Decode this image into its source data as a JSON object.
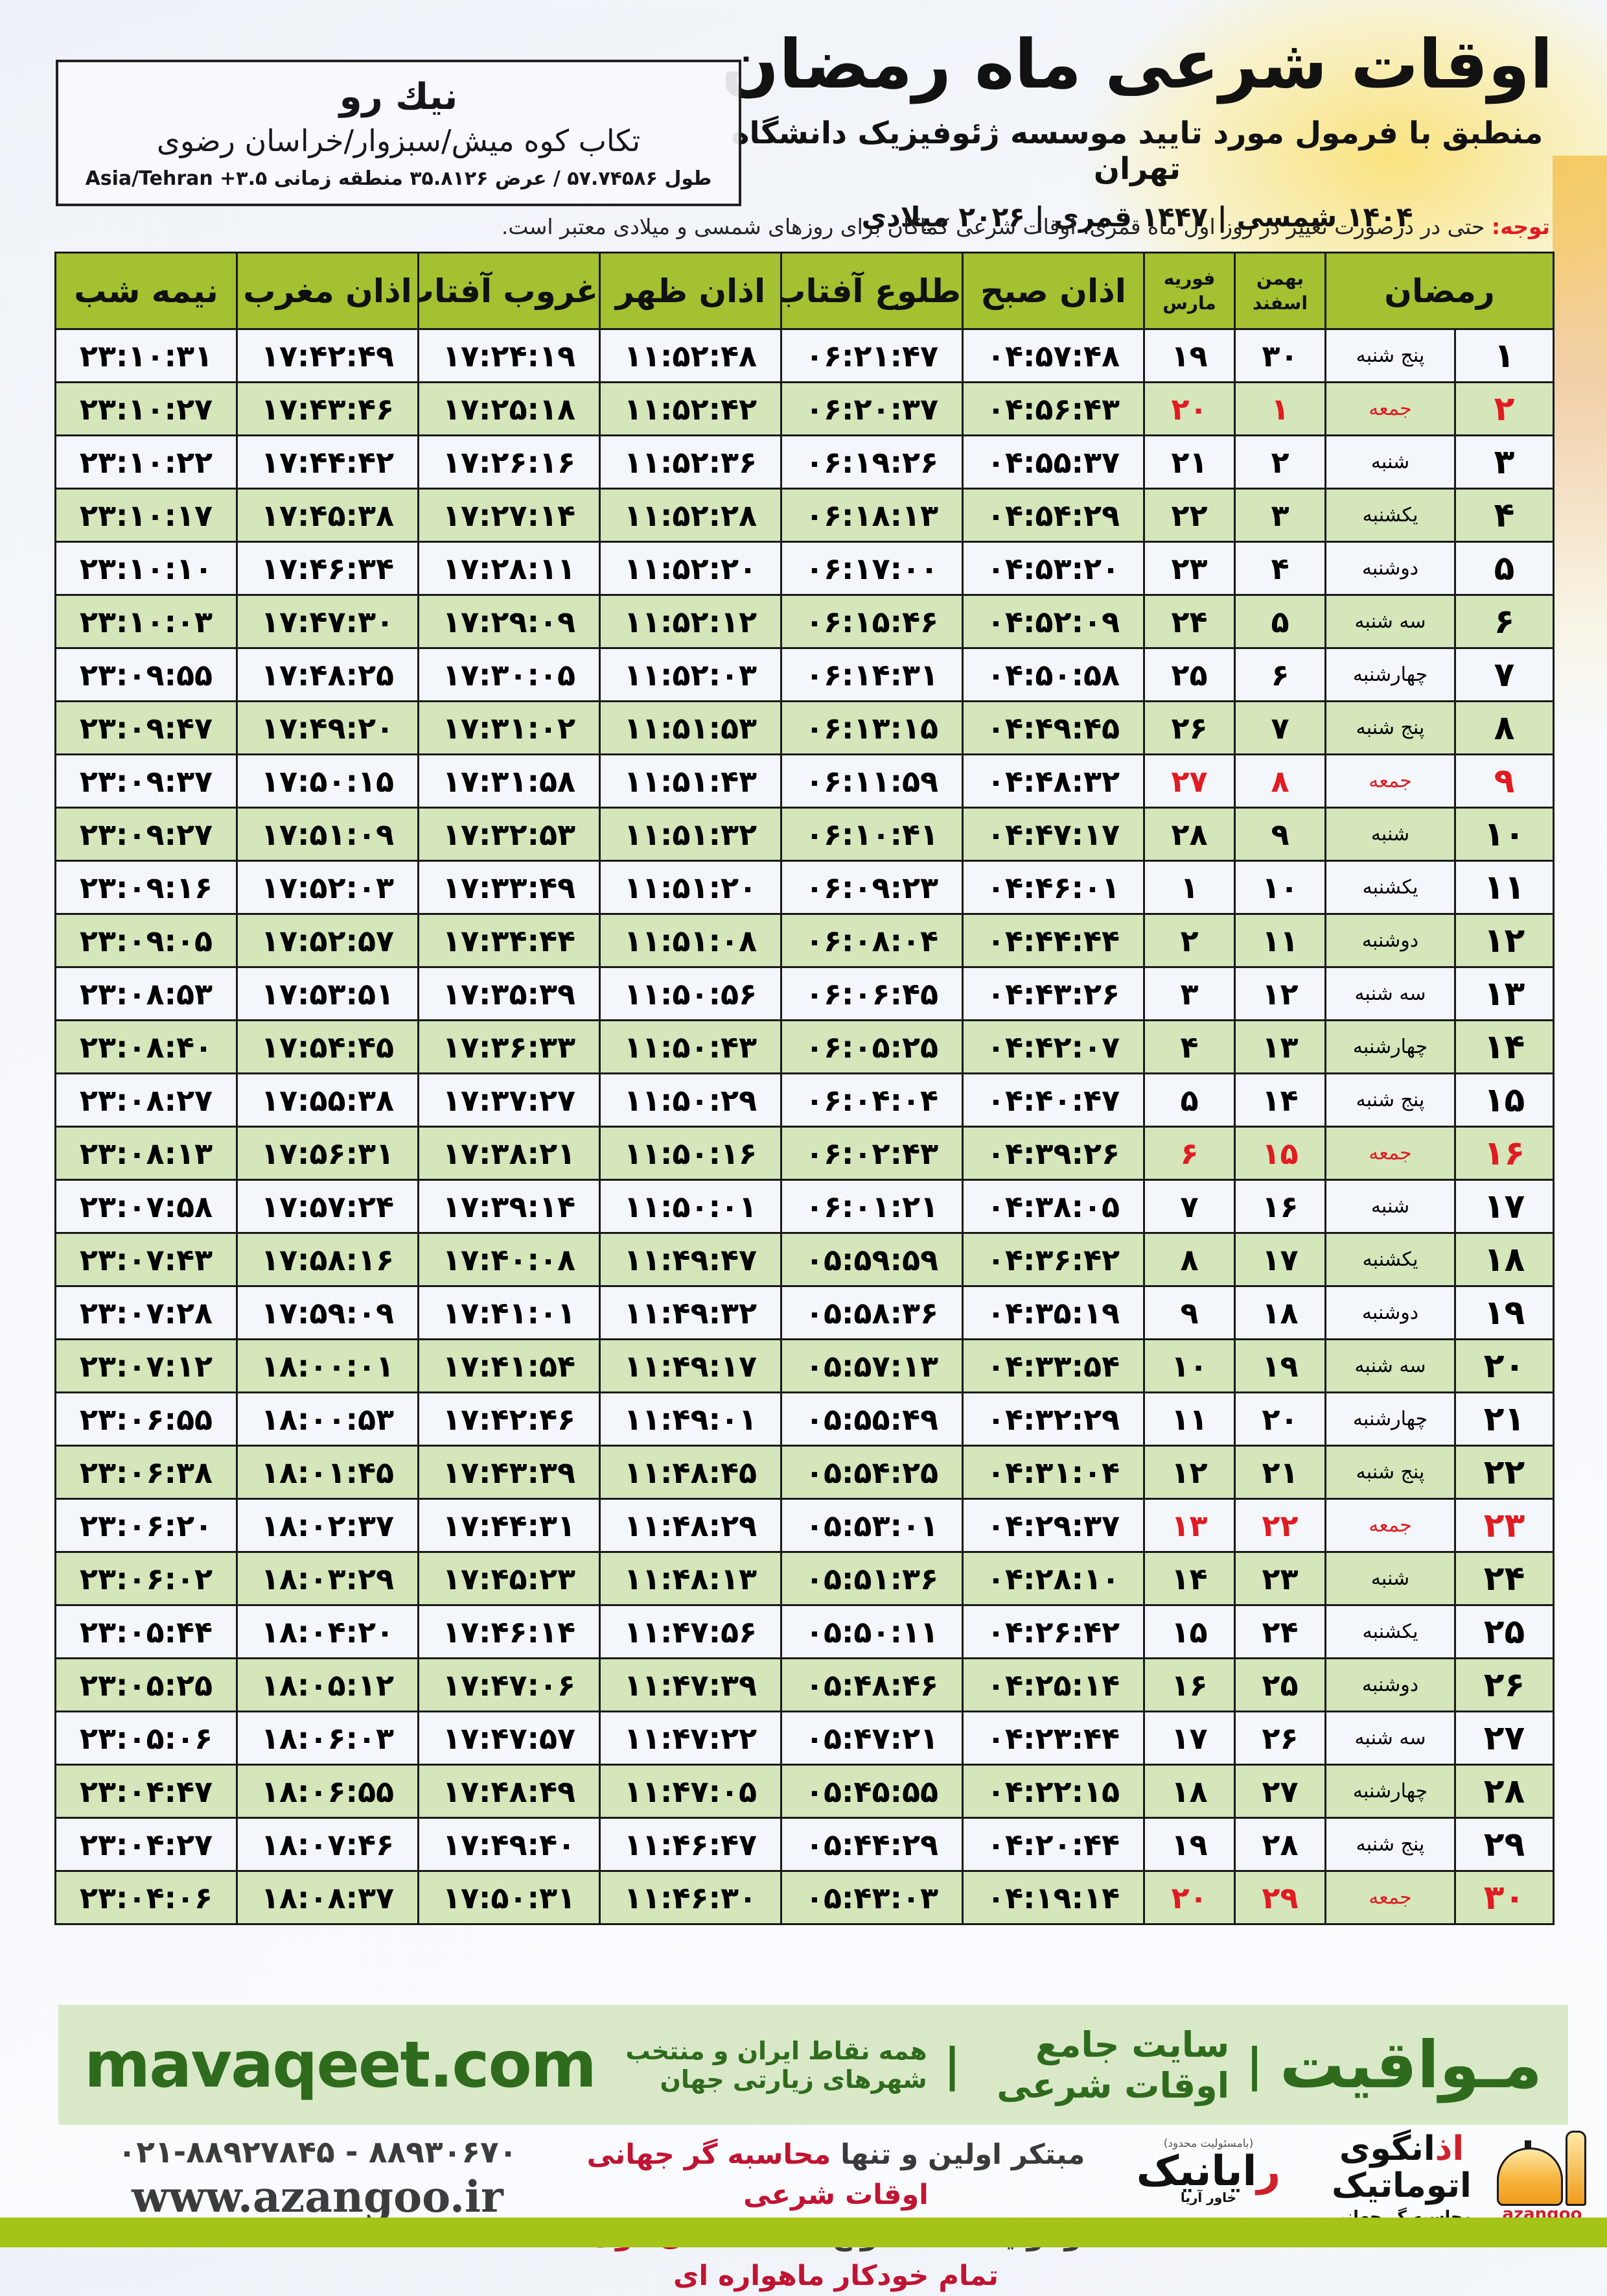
{
  "colors": {
    "header_green": "#a3c130",
    "row_green": "#d4e6ba",
    "row_white": "#f3f6fb",
    "holiday_red": "#e11b22",
    "bar_bg": "#d9e9c8",
    "dark_green": "#2f6b1d",
    "bottom_strip": "#a4c417",
    "footer_red": "#c01432"
  },
  "header": {
    "title": "اوقات شرعی ماه رمضان",
    "subtitle": "منطبق با فرمول مورد تایید موسسه ژئوفیزیک دانشگاه تهران",
    "years": "۱۴۰۴ شمسی | ۱۴۴۷ قمری | ۲۰۲۶ میلادی"
  },
  "location": {
    "name": "نیك رو",
    "region": "تکاب کوه میش/سبزوار/خراسان رضوی",
    "coords": "طول ۵۷.۷۴۵۸۶ / عرض ۳۵.۸۱۲۶ منطقه زمانی Asia/Tehran +۳.۵"
  },
  "notice": {
    "label": "توجه:",
    "text": " حتی در درصورت تغییر در روز اول ماه قمری، اوقات شرعی کماکان برای روزهای شمسی و میلادی معتبر است."
  },
  "table": {
    "headers": {
      "ramadan": "رمضان",
      "solar_months": [
        "بهمن",
        "اسفند"
      ],
      "greg_months": [
        "فوریه",
        "مارس"
      ],
      "fajr": "اذان صبح",
      "sunrise": "طلوع آفتاب",
      "dhuhr": "اذان ظهر",
      "sunset": "غروب آفتاب",
      "maghrib": "اذان مغرب",
      "midnight": "نیمه شب"
    },
    "rows": [
      {
        "d": "1",
        "w": "پنج شنبه",
        "s": "30",
        "g": "19",
        "t": [
          "04:57:48",
          "06:21:47",
          "11:52:48",
          "17:24:19",
          "17:42:49",
          "23:10:31"
        ],
        "f": false
      },
      {
        "d": "2",
        "w": "جمعه",
        "s": "1",
        "g": "20",
        "t": [
          "04:56:43",
          "06:20:37",
          "11:52:42",
          "17:25:18",
          "17:43:46",
          "23:10:27"
        ],
        "f": true
      },
      {
        "d": "3",
        "w": "شنبه",
        "s": "2",
        "g": "21",
        "t": [
          "04:55:37",
          "06:19:26",
          "11:52:36",
          "17:26:16",
          "17:44:42",
          "23:10:22"
        ],
        "f": false
      },
      {
        "d": "4",
        "w": "یکشنبه",
        "s": "3",
        "g": "22",
        "t": [
          "04:54:29",
          "06:18:13",
          "11:52:28",
          "17:27:14",
          "17:45:38",
          "23:10:17"
        ],
        "f": false
      },
      {
        "d": "5",
        "w": "دوشنبه",
        "s": "4",
        "g": "23",
        "t": [
          "04:53:20",
          "06:17:00",
          "11:52:20",
          "17:28:11",
          "17:46:34",
          "23:10:10"
        ],
        "f": false
      },
      {
        "d": "6",
        "w": "سه شنبه",
        "s": "5",
        "g": "24",
        "t": [
          "04:52:09",
          "06:15:46",
          "11:52:12",
          "17:29:09",
          "17:47:30",
          "23:10:03"
        ],
        "f": false
      },
      {
        "d": "7",
        "w": "چهارشنبه",
        "s": "6",
        "g": "25",
        "t": [
          "04:50:58",
          "06:14:31",
          "11:52:03",
          "17:30:05",
          "17:48:25",
          "23:09:55"
        ],
        "f": false
      },
      {
        "d": "8",
        "w": "پنج شنبه",
        "s": "7",
        "g": "26",
        "t": [
          "04:49:45",
          "06:13:15",
          "11:51:53",
          "17:31:02",
          "17:49:20",
          "23:09:47"
        ],
        "f": false
      },
      {
        "d": "9",
        "w": "جمعه",
        "s": "8",
        "g": "27",
        "t": [
          "04:48:32",
          "06:11:59",
          "11:51:43",
          "17:31:58",
          "17:50:15",
          "23:09:37"
        ],
        "f": true
      },
      {
        "d": "10",
        "w": "شنبه",
        "s": "9",
        "g": "28",
        "t": [
          "04:47:17",
          "06:10:41",
          "11:51:32",
          "17:32:53",
          "17:51:09",
          "23:09:27"
        ],
        "f": false
      },
      {
        "d": "11",
        "w": "یکشنبه",
        "s": "10",
        "g": "1",
        "t": [
          "04:46:01",
          "06:09:23",
          "11:51:20",
          "17:33:49",
          "17:52:03",
          "23:09:16"
        ],
        "f": false
      },
      {
        "d": "12",
        "w": "دوشنبه",
        "s": "11",
        "g": "2",
        "t": [
          "04:44:44",
          "06:08:04",
          "11:51:08",
          "17:34:44",
          "17:52:57",
          "23:09:05"
        ],
        "f": false
      },
      {
        "d": "13",
        "w": "سه شنبه",
        "s": "12",
        "g": "3",
        "t": [
          "04:43:26",
          "06:06:45",
          "11:50:56",
          "17:35:39",
          "17:53:51",
          "23:08:53"
        ],
        "f": false
      },
      {
        "d": "14",
        "w": "چهارشنبه",
        "s": "13",
        "g": "4",
        "t": [
          "04:42:07",
          "06:05:25",
          "11:50:43",
          "17:36:33",
          "17:54:45",
          "23:08:40"
        ],
        "f": false
      },
      {
        "d": "15",
        "w": "پنج شنبه",
        "s": "14",
        "g": "5",
        "t": [
          "04:40:47",
          "06:04:04",
          "11:50:29",
          "17:37:27",
          "17:55:38",
          "23:08:27"
        ],
        "f": false
      },
      {
        "d": "16",
        "w": "جمعه",
        "s": "15",
        "g": "6",
        "t": [
          "04:39:26",
          "06:02:43",
          "11:50:16",
          "17:38:21",
          "17:56:31",
          "23:08:13"
        ],
        "f": true
      },
      {
        "d": "17",
        "w": "شنبه",
        "s": "16",
        "g": "7",
        "t": [
          "04:38:05",
          "06:01:21",
          "11:50:01",
          "17:39:14",
          "17:57:24",
          "23:07:58"
        ],
        "f": false
      },
      {
        "d": "18",
        "w": "یکشنبه",
        "s": "17",
        "g": "8",
        "t": [
          "04:36:42",
          "05:59:59",
          "11:49:47",
          "17:40:08",
          "17:58:16",
          "23:07:43"
        ],
        "f": false
      },
      {
        "d": "19",
        "w": "دوشنبه",
        "s": "18",
        "g": "9",
        "t": [
          "04:35:19",
          "05:58:36",
          "11:49:32",
          "17:41:01",
          "17:59:09",
          "23:07:28"
        ],
        "f": false
      },
      {
        "d": "20",
        "w": "سه شنبه",
        "s": "19",
        "g": "10",
        "t": [
          "04:33:54",
          "05:57:13",
          "11:49:17",
          "17:41:54",
          "18:00:01",
          "23:07:12"
        ],
        "f": false
      },
      {
        "d": "21",
        "w": "چهارشنبه",
        "s": "20",
        "g": "11",
        "t": [
          "04:32:29",
          "05:55:49",
          "11:49:01",
          "17:42:46",
          "18:00:53",
          "23:06:55"
        ],
        "f": false
      },
      {
        "d": "22",
        "w": "پنج شنبه",
        "s": "21",
        "g": "12",
        "t": [
          "04:31:04",
          "05:54:25",
          "11:48:45",
          "17:43:39",
          "18:01:45",
          "23:06:38"
        ],
        "f": false
      },
      {
        "d": "23",
        "w": "جمعه",
        "s": "22",
        "g": "13",
        "t": [
          "04:29:37",
          "05:53:01",
          "11:48:29",
          "17:44:31",
          "18:02:37",
          "23:06:20"
        ],
        "f": true
      },
      {
        "d": "24",
        "w": "شنبه",
        "s": "23",
        "g": "14",
        "t": [
          "04:28:10",
          "05:51:36",
          "11:48:13",
          "17:45:23",
          "18:03:29",
          "23:06:02"
        ],
        "f": false
      },
      {
        "d": "25",
        "w": "یکشنبه",
        "s": "24",
        "g": "15",
        "t": [
          "04:26:42",
          "05:50:11",
          "11:47:56",
          "17:46:14",
          "18:04:20",
          "23:05:44"
        ],
        "f": false
      },
      {
        "d": "26",
        "w": "دوشنبه",
        "s": "25",
        "g": "16",
        "t": [
          "04:25:14",
          "05:48:46",
          "11:47:39",
          "17:47:06",
          "18:05:12",
          "23:05:25"
        ],
        "f": false
      },
      {
        "d": "27",
        "w": "سه شنبه",
        "s": "26",
        "g": "17",
        "t": [
          "04:23:44",
          "05:47:21",
          "11:47:22",
          "17:47:57",
          "18:06:03",
          "23:05:06"
        ],
        "f": false
      },
      {
        "d": "28",
        "w": "چهارشنبه",
        "s": "27",
        "g": "18",
        "t": [
          "04:22:15",
          "05:45:55",
          "11:47:05",
          "17:48:49",
          "18:06:55",
          "23:04:47"
        ],
        "f": false
      },
      {
        "d": "29",
        "w": "پنج شنبه",
        "s": "28",
        "g": "19",
        "t": [
          "04:20:44",
          "05:44:29",
          "11:46:47",
          "17:49:40",
          "18:07:46",
          "23:04:27"
        ],
        "f": false
      },
      {
        "d": "30",
        "w": "جمعه",
        "s": "29",
        "g": "20",
        "t": [
          "04:19:14",
          "05:43:03",
          "11:46:30",
          "17:50:31",
          "18:08:37",
          "23:04:06"
        ],
        "f": true
      }
    ]
  },
  "bar": {
    "brand": "مـواقیت",
    "pipe": "|",
    "site_desc": "سایت جامع اوقات شرعی",
    "site_sub": "همه نقاط ایران و منتخب شهرهای زیارتی جهان",
    "domain": "mavaqeet.com"
  },
  "footer": {
    "phone": "۰۲۱-۸۸۹۲۷۸۴۵ - ۸۸۹۳۰۶۷۰",
    "website": "www.azangoo.ir",
    "line1_dark": "مبتکر اولین و تنها ",
    "line1_red": "محاسبه گر جهانی اوقات شرعی",
    "line2_dark": "و تولید کننده انواع ",
    "line2_red": "دستگاه اذان گوی تمام خودکار ماهواره ای",
    "rayanik_tiny": "(بامسئولیت محدود)",
    "rayanik_r": "ر",
    "rayanik_rest": "ایانیک",
    "rayanik_sub": "خاور آریا",
    "azangoo_fa_r": "اذ",
    "azangoo_fa_rest": "انگوی اتوماتیک",
    "azangoo_sub": "محاسبه گر جهانی اوقات شرعی",
    "azangoo_en": "azangoo"
  }
}
